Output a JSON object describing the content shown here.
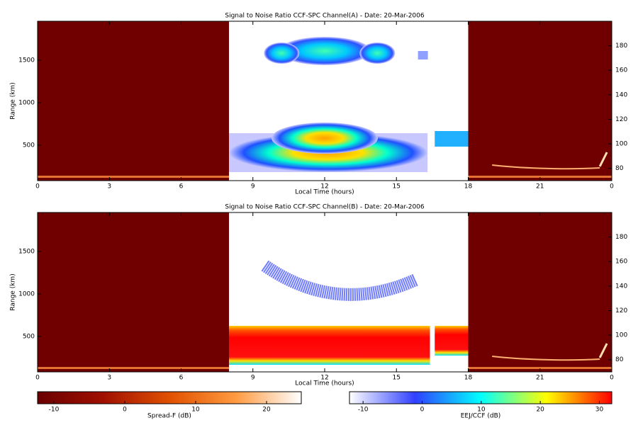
{
  "chart_data": [
    {
      "type": "heatmap",
      "title": "Signal to Noise Ratio CCF-SPC Channel(A) - Date: 20-Mar-2006",
      "xlabel": "Local Time (hours)",
      "ylabel": "Range (km)",
      "xlim": [
        0,
        24
      ],
      "xticks": [
        0,
        3,
        6,
        9,
        12,
        15,
        18,
        21,
        {
          "value": 24,
          "label": "0"
        }
      ],
      "ylim": [
        83,
        1958
      ],
      "yticks": [
        500,
        1000,
        1500
      ],
      "y2lim": [
        70,
        200
      ],
      "y2ticks": [
        80,
        100,
        120,
        140,
        160,
        180
      ]
    },
    {
      "type": "heatmap",
      "title": "Signal to Noise Ratio CCF-SPC Channel(B) - Date: 20-Mar-2006",
      "xlabel": "Local Time (hours)",
      "ylabel": "Range (km)",
      "xlim": [
        0,
        24
      ],
      "xticks": [
        0,
        3,
        6,
        9,
        12,
        15,
        18,
        21,
        {
          "value": 24,
          "label": "0"
        }
      ],
      "ylim": [
        83,
        1958
      ],
      "yticks": [
        500,
        1000,
        1500
      ],
      "y2lim": [
        70,
        200
      ],
      "y2ticks": [
        80,
        100,
        120,
        140,
        160,
        180
      ]
    }
  ],
  "colorbars": [
    {
      "label": "Spread-F (dB)",
      "lim": [
        -12.3,
        24.9
      ],
      "ticks": [
        -10,
        0,
        10,
        20
      ],
      "colors": [
        "#6a0000",
        "#a01000",
        "#e05000",
        "#ff9a40",
        "#ffffff"
      ]
    },
    {
      "label": "EEJ/CCF (dB)",
      "lim": [
        -12.3,
        32.1
      ],
      "ticks": [
        -10,
        0,
        10,
        20,
        30
      ],
      "colors": [
        "#ffffff",
        "#3040ff",
        "#00ffff",
        "#ffff00",
        "#ff0000"
      ]
    }
  ]
}
